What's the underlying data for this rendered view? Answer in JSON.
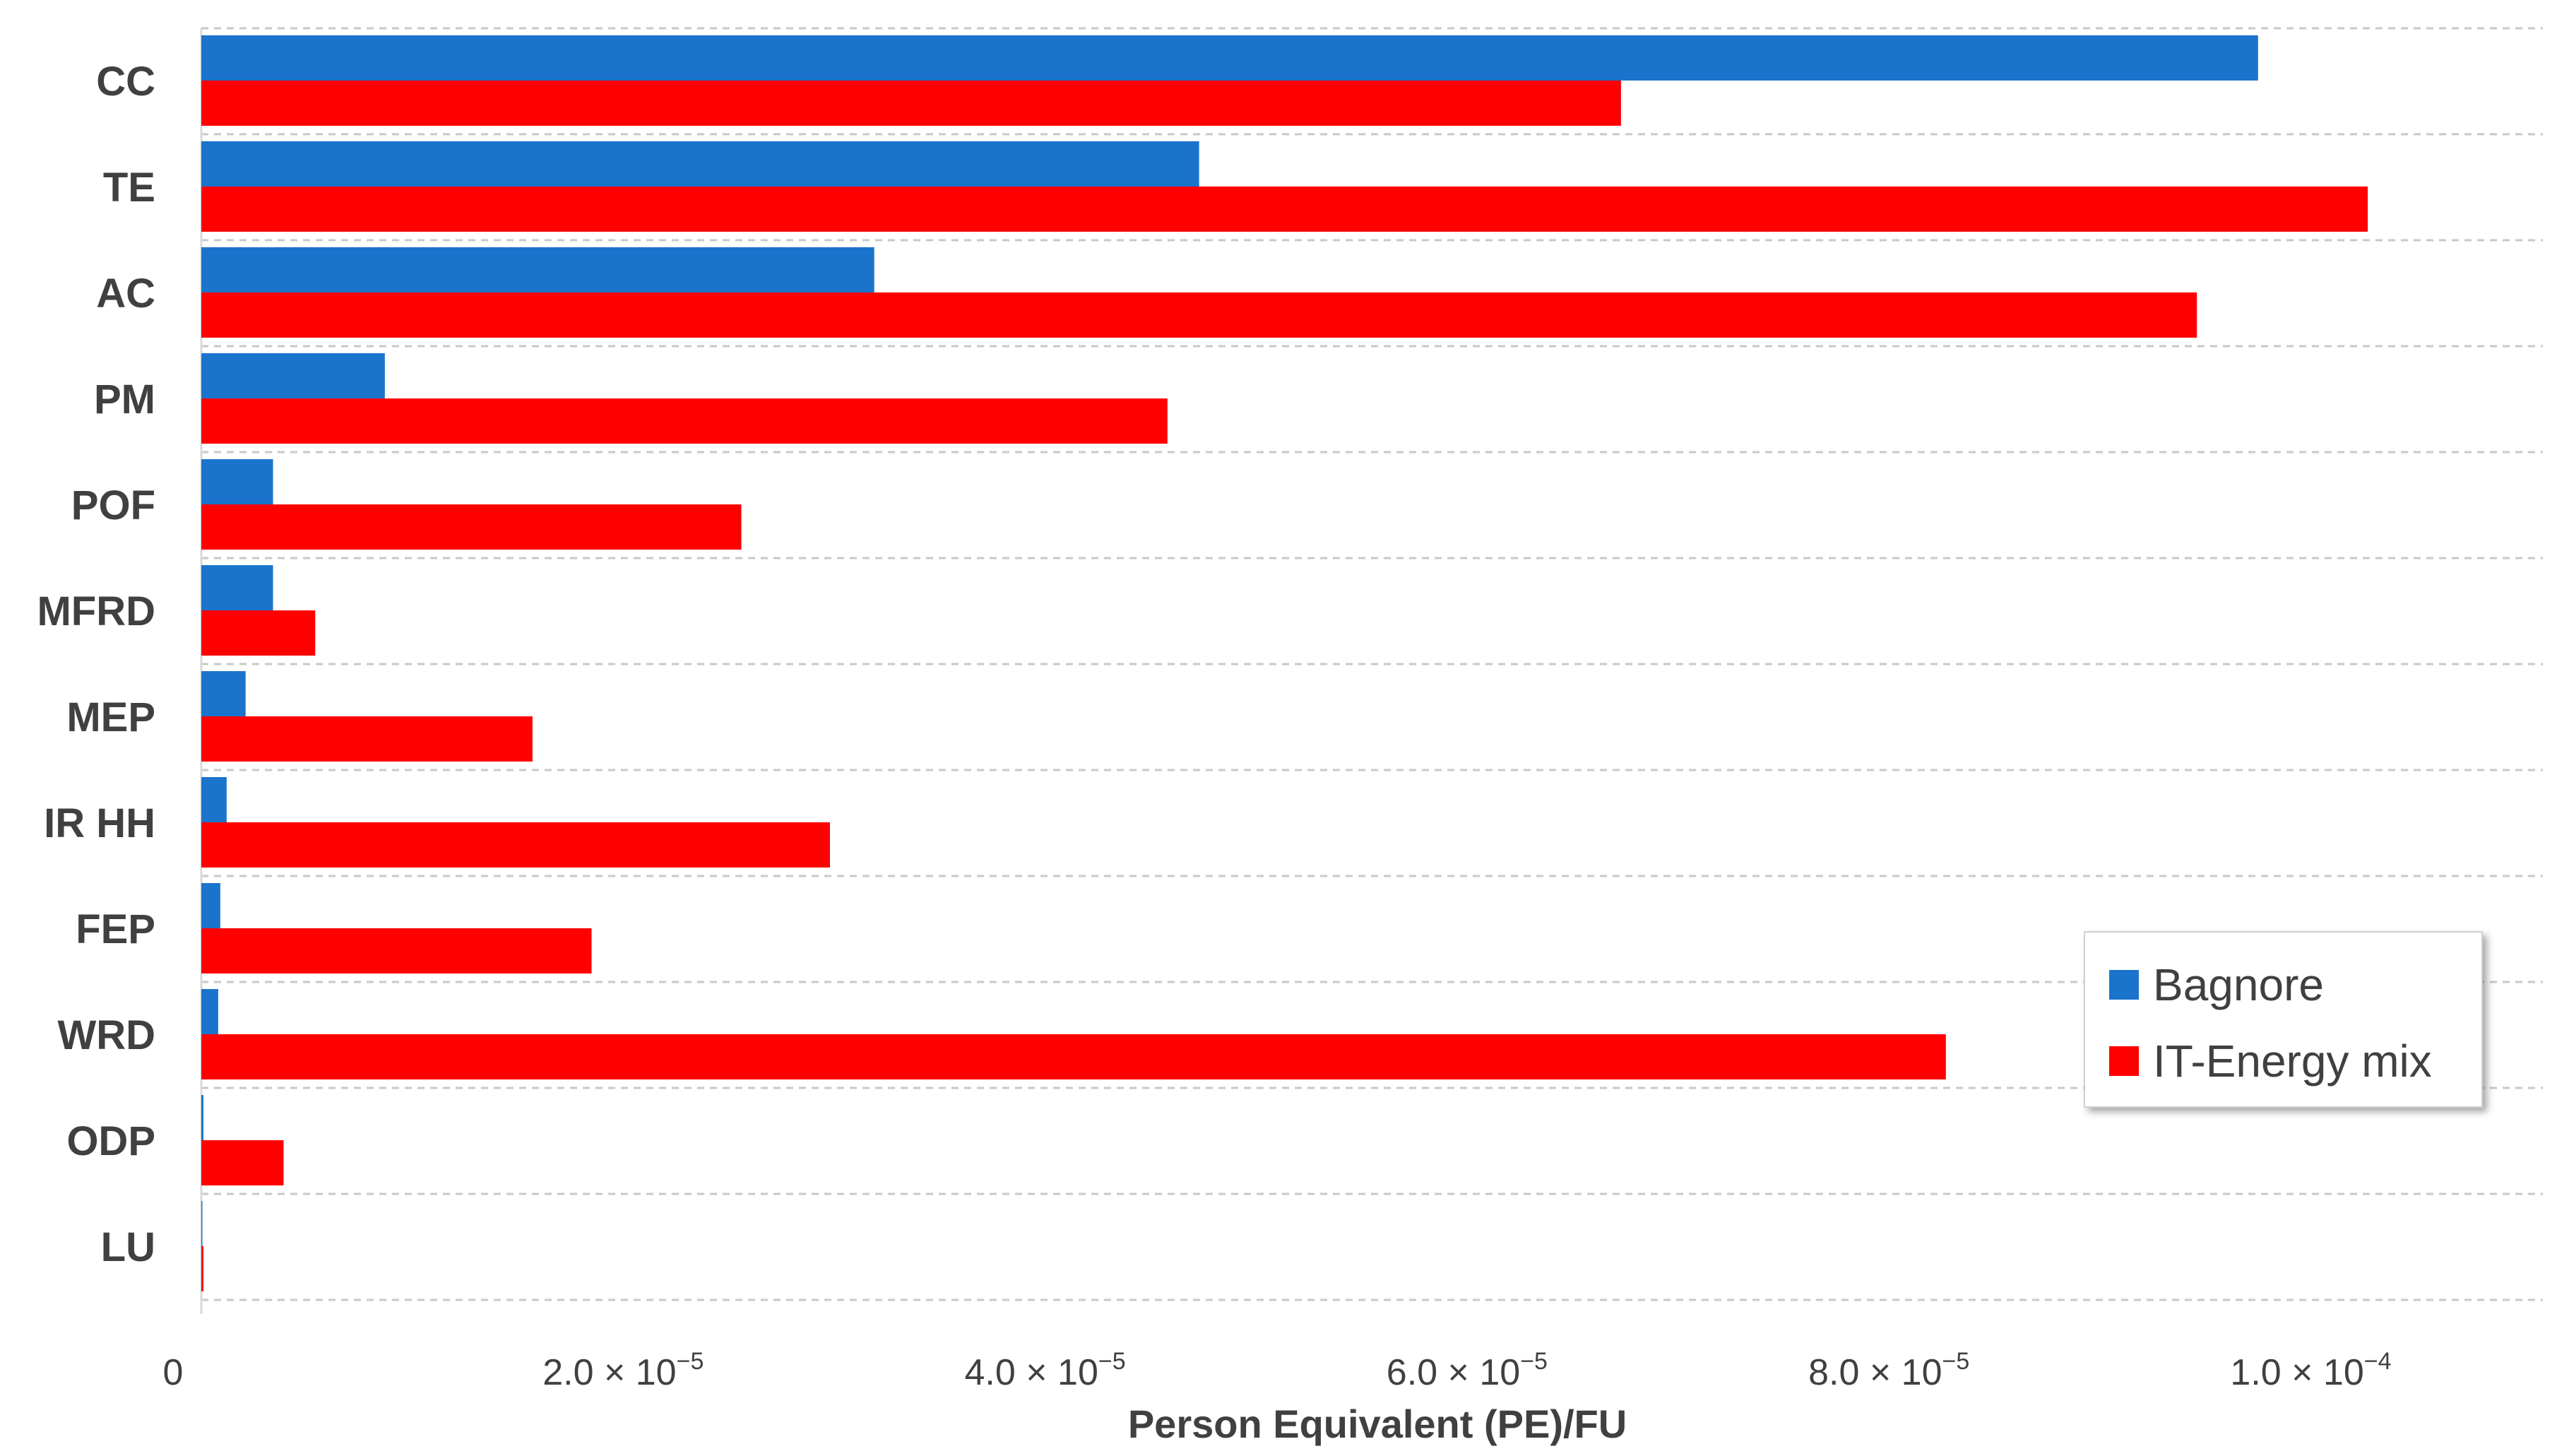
{
  "chart_data": {
    "type": "bar",
    "orientation": "horizontal",
    "title": "",
    "xlabel": "Person Equivalent (PE)/FU",
    "ylabel": "",
    "xlim": [
      0,
      0.000111
    ],
    "grid": true,
    "legend_position": "bottom-right",
    "categories": [
      "CC",
      "TE",
      "AC",
      "PM",
      "POF",
      "MFRD",
      "MEP",
      "IR HH",
      "FEP",
      "WRD",
      "ODP",
      "LU"
    ],
    "series": [
      {
        "name": "Bagnore",
        "color": "#1a74cc",
        "values": [
          9.75e-05,
          4.73e-05,
          3.19e-05,
          8.7e-06,
          3.4e-06,
          3.4e-06,
          2.1e-06,
          1.2e-06,
          9e-07,
          8e-07,
          1e-07,
          5e-08
        ]
      },
      {
        "name": "IT-Energy mix",
        "color": "#ff0000",
        "values": [
          6.73e-05,
          0.0001027,
          9.46e-05,
          4.58e-05,
          2.56e-05,
          5.4e-06,
          1.57e-05,
          2.98e-05,
          1.85e-05,
          8.27e-05,
          3.9e-06,
          1e-07
        ]
      }
    ],
    "x_ticks": [
      {
        "value": 0,
        "mantissa": "0",
        "base": "",
        "exponent": ""
      },
      {
        "value": 2e-05,
        "mantissa": "2.0",
        "base": " × 10",
        "exponent": "−5"
      },
      {
        "value": 4e-05,
        "mantissa": "4.0",
        "base": " × 10",
        "exponent": "−5"
      },
      {
        "value": 6e-05,
        "mantissa": "6.0",
        "base": " × 10",
        "exponent": "−5"
      },
      {
        "value": 8e-05,
        "mantissa": "8.0",
        "base": " × 10",
        "exponent": "−5"
      },
      {
        "value": 0.0001,
        "mantissa": "1.0",
        "base": " × 10",
        "exponent": "−4"
      }
    ]
  }
}
